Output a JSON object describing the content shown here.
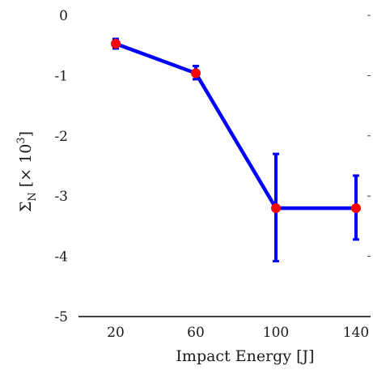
{
  "chart_data": {
    "type": "line",
    "x": [
      20,
      60,
      100,
      140
    ],
    "categories": [
      "20",
      "60",
      "100",
      "140"
    ],
    "series": [
      {
        "values": [
          -0.47,
          -0.96,
          -3.2,
          -3.2
        ],
        "error_low": [
          -0.55,
          -1.06,
          -4.08,
          -3.72
        ],
        "error_high": [
          -0.39,
          -0.84,
          -2.3,
          -2.66
        ],
        "line_color": "#0000ff",
        "marker_color": "#ff0000"
      }
    ],
    "xlabel": "Impact Energy [J]",
    "ylabel": {
      "main": "Σ",
      "sub": "N",
      "rest": " [× 10",
      "sup": "3",
      "end": "]"
    },
    "ylim": [
      -5,
      0
    ],
    "yticks": [
      0,
      -1,
      -2,
      -3,
      -4,
      -5
    ],
    "ytick_labels": [
      "0",
      "-1",
      "-2",
      "-3",
      "-4",
      "-5"
    ],
    "grid": false,
    "legend": "none"
  }
}
